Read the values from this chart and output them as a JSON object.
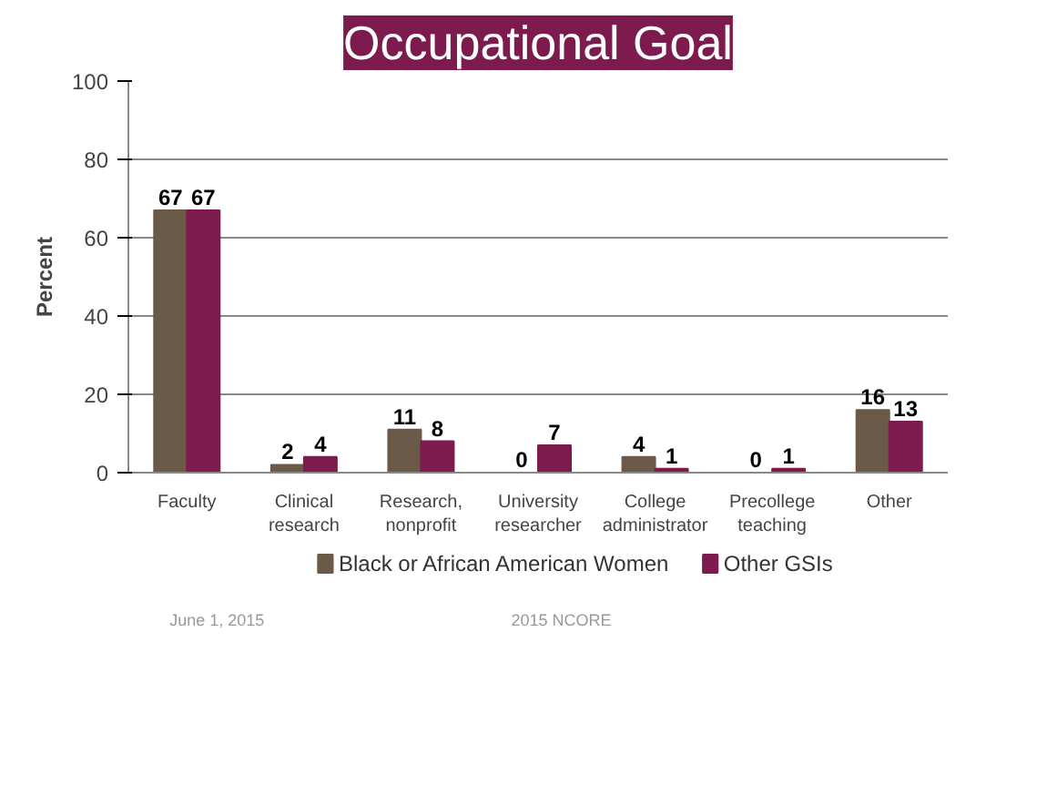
{
  "chart_data": {
    "type": "bar",
    "title": "Occupational Goal",
    "ylabel": "Percent",
    "categories": [
      "Faculty",
      "Clinical research",
      "Research, nonprofit",
      "University researcher",
      "College administrator",
      "Precollege teaching",
      "Other"
    ],
    "series": [
      {
        "name": "Black or African American Women",
        "color": "#6b5a48",
        "values": [
          67,
          2,
          11,
          0,
          4,
          0,
          16
        ]
      },
      {
        "name": "Other GSIs",
        "color": "#7e1b4e",
        "values": [
          67,
          4,
          8,
          7,
          1,
          1,
          13
        ]
      }
    ],
    "ylim": [
      0,
      100
    ],
    "yticks": [
      0,
      20,
      40,
      60,
      80,
      100
    ],
    "grid": "y",
    "legend": "bottom",
    "data_labels": true,
    "annotations": [
      "June 1, 2015",
      "2015 NCORE"
    ]
  }
}
